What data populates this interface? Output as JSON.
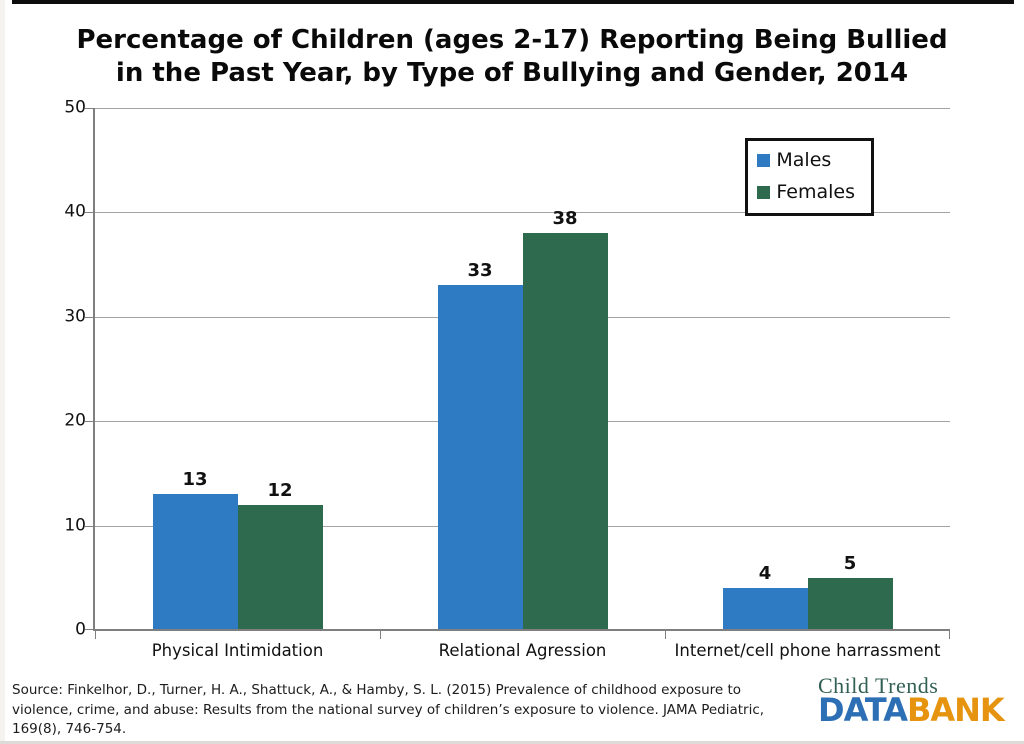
{
  "title": {
    "line1": "Percentage of Children (ages 2-17) Reporting Being Bullied",
    "line2": "in the Past Year, by Type of Bullying and Gender, 2014"
  },
  "chart_data": {
    "type": "bar",
    "title": "Percentage of Children (ages 2-17) Reporting Being Bullied in the Past Year, by Type of Bullying and Gender, 2014",
    "categories": [
      "Physical Intimidation",
      "Relational Agression",
      "Internet/cell phone harrassment"
    ],
    "series": [
      {
        "name": "Males",
        "color": "#2e7bc4",
        "values": [
          13,
          33,
          4
        ]
      },
      {
        "name": "Females",
        "color": "#2e6b4e",
        "values": [
          12,
          38,
          5
        ]
      }
    ],
    "ylim": [
      0,
      50
    ],
    "yticks": [
      0,
      10,
      20,
      30,
      40,
      50
    ],
    "grid": "horizontal",
    "legend_position": "top-right",
    "bar_value_labels": true
  },
  "source": {
    "lines": [
      "Source: Finkelhor, D., Turner, H. A., Shattuck, A., & Hamby, S. L. (2015) Prevalence of childhood  exposure to",
      "violence, crime, and abuse: Results from the national survey of children’s  exposure to violence. JAMA Pediatric,",
      "169(8), 746-754."
    ]
  },
  "logo": {
    "brand": "Child Trends",
    "word_data": "DATA",
    "word_bank": "BANK",
    "brand_color": "#336055",
    "data_color": "#2d6fb4",
    "bank_color": "#e6940f"
  }
}
